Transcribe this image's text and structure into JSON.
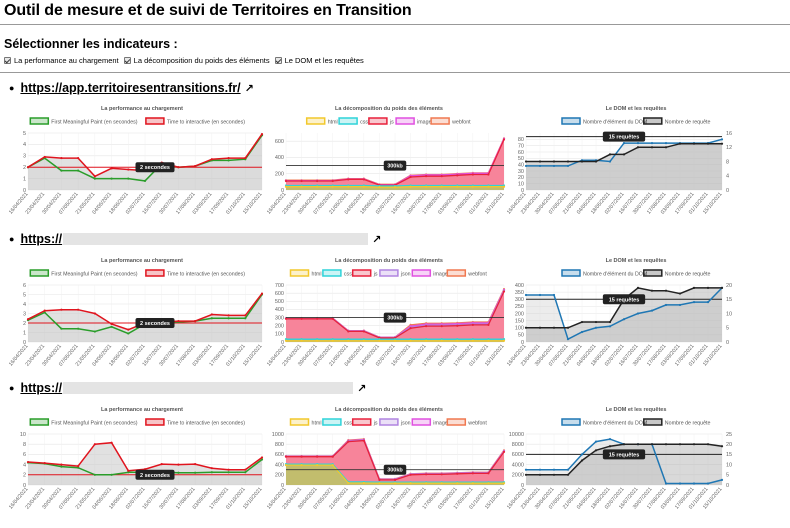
{
  "page": {
    "title": "Outil de mesure et de suivi de Territoires en Transition",
    "subtitle": "Sélectionner les indicateurs :",
    "checkboxes": [
      {
        "label": "La performance au chargement",
        "checked": true
      },
      {
        "label": "La décomposition du poids des éléments",
        "checked": true
      },
      {
        "label": "Le DOM et les requêtes",
        "checked": true
      }
    ],
    "link_icon": "external-link-icon"
  },
  "dates": [
    "16/04/2021",
    "23/04/2021",
    "30/04/2021",
    "07/05/2021",
    "21/05/2021",
    "04/06/2021",
    "18/06/2021",
    "02/07/2021",
    "16/07/2021",
    "30/07/2021",
    "17/08/2021",
    "03/09/2021",
    "17/09/2021",
    "01/10/2021",
    "15/10/2021"
  ],
  "colors": {
    "fmp": "#2a9d2a",
    "tti": "#e0141e",
    "html": "#f2c82c",
    "css": "#2ed3d9",
    "js": "#e8213b",
    "json": "#b084e0",
    "image": "#e050e0",
    "webfont": "#f07850",
    "dom": "#1f77b4",
    "req": "#222222"
  },
  "sites": [
    {
      "url": "https://app.territoiresentransitions.fr/",
      "charts": [
        {
          "type": "line",
          "title": "La performance au chargement",
          "legend": [
            "First Meaningful Paint (en secondes)",
            "Time to interactive (en secondes)"
          ],
          "ylim": [
            0,
            5
          ],
          "yticks": [
            0,
            1,
            2,
            3,
            4,
            5
          ],
          "threshold": 2,
          "threshold_label": "2 secondes",
          "series": [
            {
              "name": "First Meaningful Paint (en secondes)",
              "values": [
                2.0,
                2.8,
                1.7,
                1.7,
                1.0,
                1.0,
                1.0,
                0.8,
                2.3,
                2.0,
                2.1,
                2.6,
                2.6,
                2.7,
                4.8
              ]
            },
            {
              "name": "Time to interactive (en secondes)",
              "values": [
                2.0,
                2.9,
                2.8,
                2.8,
                1.2,
                1.9,
                1.8,
                1.7,
                2.4,
                2.0,
                2.1,
                2.7,
                2.8,
                2.8,
                4.9
              ]
            }
          ]
        },
        {
          "type": "area",
          "title": "La décomposition du poids des éléments",
          "legend": [
            "html",
            "css",
            "js",
            "image",
            "webfont"
          ],
          "ylim": [
            0,
            700
          ],
          "yticks": [
            0,
            200,
            400,
            600
          ],
          "threshold": 300,
          "threshold_label": "300kb",
          "series": [
            {
              "name": "html",
              "values": [
                40,
                40,
                40,
                40,
                40,
                40,
                35,
                35,
                40,
                40,
                40,
                40,
                40,
                40,
                40
              ]
            },
            {
              "name": "css",
              "values": [
                55,
                55,
                55,
                55,
                55,
                55,
                50,
                50,
                55,
                55,
                55,
                55,
                55,
                55,
                55
              ]
            },
            {
              "name": "js",
              "values": [
                110,
                110,
                110,
                110,
                130,
                130,
                60,
                60,
                160,
                170,
                170,
                180,
                190,
                190,
                620
              ]
            },
            {
              "name": "image",
              "values": [
                115,
                115,
                115,
                115,
                135,
                135,
                65,
                65,
                175,
                185,
                185,
                195,
                205,
                205,
                630
              ]
            },
            {
              "name": "webfont",
              "values": [
                120,
                120,
                120,
                120,
                140,
                140,
                70,
                70,
                180,
                190,
                190,
                200,
                210,
                210,
                635
              ]
            }
          ]
        },
        {
          "type": "dual-line",
          "title": "Le DOM et les requêtes",
          "legend": [
            "Nombre d'élément du DOM",
            "Nombre de requête"
          ],
          "ylim": [
            0,
            90
          ],
          "yticks": [
            0,
            10,
            20,
            30,
            40,
            50,
            60,
            70,
            80
          ],
          "y2lim": [
            0,
            16
          ],
          "y2ticks": [
            0,
            4,
            8,
            12,
            16
          ],
          "threshold": 15,
          "threshold_label": "15 requêtes",
          "series": [
            {
              "name": "Nombre d'élément du DOM",
              "values": [
                38,
                38,
                38,
                38,
                47,
                47,
                45,
                74,
                74,
                74,
                74,
                74,
                74,
                74,
                80
              ],
              "axis": "left"
            },
            {
              "name": "Nombre de requête",
              "values": [
                8,
                8,
                8,
                8,
                8,
                8,
                10,
                10,
                12,
                12,
                12,
                13,
                13,
                13,
                13
              ],
              "axis": "right"
            }
          ]
        }
      ]
    },
    {
      "url": "https://",
      "charts": [
        {
          "type": "line",
          "title": "La performance au chargement",
          "legend": [
            "First Meaningful Paint (en secondes)",
            "Time to interactive (en secondes)"
          ],
          "ylim": [
            0,
            6
          ],
          "yticks": [
            0,
            1,
            2,
            3,
            4,
            5,
            6
          ],
          "threshold": 2,
          "threshold_label": "2 secondes",
          "series": [
            {
              "name": "First Meaningful Paint (en secondes)",
              "values": [
                2.3,
                3.1,
                1.4,
                1.4,
                1.1,
                1.6,
                0.9,
                1.9,
                2.1,
                2.1,
                2.2,
                2.5,
                2.5,
                2.5,
                5.0
              ]
            },
            {
              "name": "Time to interactive (en secondes)",
              "values": [
                2.4,
                3.3,
                3.4,
                3.4,
                3.0,
                1.9,
                1.3,
                2.0,
                2.1,
                2.2,
                2.2,
                2.9,
                2.8,
                2.8,
                5.1
              ]
            }
          ]
        },
        {
          "type": "area",
          "title": "La décomposition du poids des éléments",
          "legend": [
            "html",
            "css",
            "js",
            "json",
            "image",
            "webfont"
          ],
          "ylim": [
            0,
            700
          ],
          "yticks": [
            0,
            100,
            200,
            300,
            400,
            500,
            600,
            700
          ],
          "threshold": 300,
          "threshold_label": "300kb",
          "series": [
            {
              "name": "html",
              "values": [
                15,
                15,
                15,
                15,
                15,
                15,
                15,
                15,
                15,
                15,
                15,
                15,
                15,
                15,
                15
              ]
            },
            {
              "name": "css",
              "values": [
                35,
                35,
                35,
                35,
                35,
                35,
                35,
                35,
                35,
                35,
                35,
                35,
                35,
                35,
                35
              ]
            },
            {
              "name": "js",
              "values": [
                285,
                285,
                285,
                285,
                130,
                130,
                50,
                50,
                170,
                195,
                195,
                200,
                210,
                210,
                620
              ]
            },
            {
              "name": "json",
              "values": [
                290,
                290,
                290,
                290,
                135,
                135,
                55,
                55,
                180,
                205,
                205,
                210,
                220,
                220,
                630
              ]
            },
            {
              "name": "image",
              "values": [
                292,
                292,
                292,
                292,
                138,
                138,
                58,
                58,
                195,
                220,
                220,
                225,
                235,
                235,
                640
              ]
            },
            {
              "name": "webfont",
              "values": [
                295,
                295,
                295,
                295,
                140,
                140,
                60,
                60,
                210,
                230,
                230,
                235,
                245,
                245,
                650
              ]
            }
          ]
        },
        {
          "type": "dual-line",
          "title": "Le DOM et les requêtes",
          "legend": [
            "Nombre d'élément du DOM",
            "Nombre de requête"
          ],
          "ylim": [
            0,
            400
          ],
          "yticks": [
            0,
            50,
            100,
            150,
            200,
            250,
            300,
            350,
            400
          ],
          "y2lim": [
            0,
            20
          ],
          "y2ticks": [
            0,
            5,
            10,
            15,
            20
          ],
          "threshold": 15,
          "threshold_label": "15 requêtes",
          "series": [
            {
              "name": "Nombre d'élément du DOM",
              "values": [
                330,
                330,
                330,
                20,
                70,
                100,
                110,
                160,
                200,
                220,
                260,
                260,
                280,
                280,
                380
              ],
              "axis": "left"
            },
            {
              "name": "Nombre de requête",
              "values": [
                5,
                5,
                5,
                5,
                7,
                7,
                7,
                15,
                19,
                18,
                18,
                17,
                19,
                19,
                19
              ],
              "axis": "right"
            }
          ]
        }
      ]
    },
    {
      "url": "https://",
      "charts": [
        {
          "type": "line",
          "title": "La performance au chargement",
          "legend": [
            "First Meaningful Paint (en secondes)",
            "Time to interactive (en secondes)"
          ],
          "ylim": [
            0,
            10
          ],
          "yticks": [
            0,
            2,
            4,
            6,
            8,
            10
          ],
          "threshold": 2,
          "threshold_label": "2 secondes",
          "series": [
            {
              "name": "First Meaningful Paint (en secondes)",
              "values": [
                4.4,
                4.2,
                3.6,
                3.4,
                2.0,
                2.0,
                2.5,
                2.5,
                2.5,
                2.4,
                2.4,
                2.5,
                2.5,
                2.5,
                5.0
              ]
            },
            {
              "name": "Time to interactive (en secondes)",
              "values": [
                4.5,
                4.3,
                4.0,
                3.7,
                8.0,
                8.3,
                2.8,
                3.1,
                4.1,
                4.0,
                4.1,
                3.3,
                3.0,
                3.0,
                5.4
              ]
            }
          ]
        },
        {
          "type": "area",
          "title": "La décomposition du poids des éléments",
          "legend": [
            "html",
            "css",
            "js",
            "json",
            "image",
            "webfont"
          ],
          "ylim": [
            0,
            1000
          ],
          "yticks": [
            0,
            200,
            400,
            600,
            800,
            1000
          ],
          "threshold": 300,
          "threshold_label": "300kb",
          "series": [
            {
              "name": "html",
              "values": [
                390,
                390,
                390,
                390,
                40,
                40,
                35,
                35,
                35,
                35,
                35,
                35,
                35,
                35,
                35
              ]
            },
            {
              "name": "css",
              "values": [
                410,
                410,
                410,
                410,
                60,
                60,
                55,
                55,
                55,
                55,
                55,
                55,
                55,
                55,
                55
              ]
            },
            {
              "name": "js",
              "values": [
                555,
                555,
                555,
                555,
                850,
                870,
                100,
                100,
                200,
                210,
                210,
                220,
                230,
                230,
                650
              ]
            },
            {
              "name": "json",
              "values": [
                560,
                560,
                560,
                560,
                860,
                880,
                110,
                110,
                210,
                220,
                220,
                230,
                240,
                240,
                660
              ]
            },
            {
              "name": "image",
              "values": [
                565,
                565,
                565,
                565,
                870,
                890,
                115,
                115,
                215,
                225,
                225,
                235,
                245,
                245,
                670
              ]
            },
            {
              "name": "webfont",
              "values": [
                570,
                570,
                570,
                570,
                880,
                900,
                120,
                120,
                220,
                230,
                230,
                240,
                250,
                250,
                680
              ]
            }
          ]
        },
        {
          "type": "dual-line",
          "title": "Le DOM et les requêtes",
          "legend": [
            "Nombre d'élément du DOM",
            "Nombre de requête"
          ],
          "ylim": [
            0,
            10000
          ],
          "yticks": [
            0,
            2000,
            4000,
            6000,
            8000,
            10000
          ],
          "y2lim": [
            0,
            25
          ],
          "y2ticks": [
            0,
            5,
            10,
            15,
            20,
            25
          ],
          "threshold": 15,
          "threshold_label": "15 requêtes",
          "series": [
            {
              "name": "Nombre d'élément du DOM",
              "values": [
                3000,
                3000,
                3000,
                3000,
                6000,
                8500,
                9000,
                8000,
                8000,
                8000,
                300,
                300,
                300,
                300,
                1000
              ],
              "axis": "left"
            },
            {
              "name": "Nombre de requête",
              "values": [
                5,
                5,
                5,
                5,
                12,
                17,
                19,
                20,
                20,
                20,
                20,
                20,
                20,
                20,
                19
              ],
              "axis": "right"
            }
          ]
        }
      ]
    }
  ]
}
